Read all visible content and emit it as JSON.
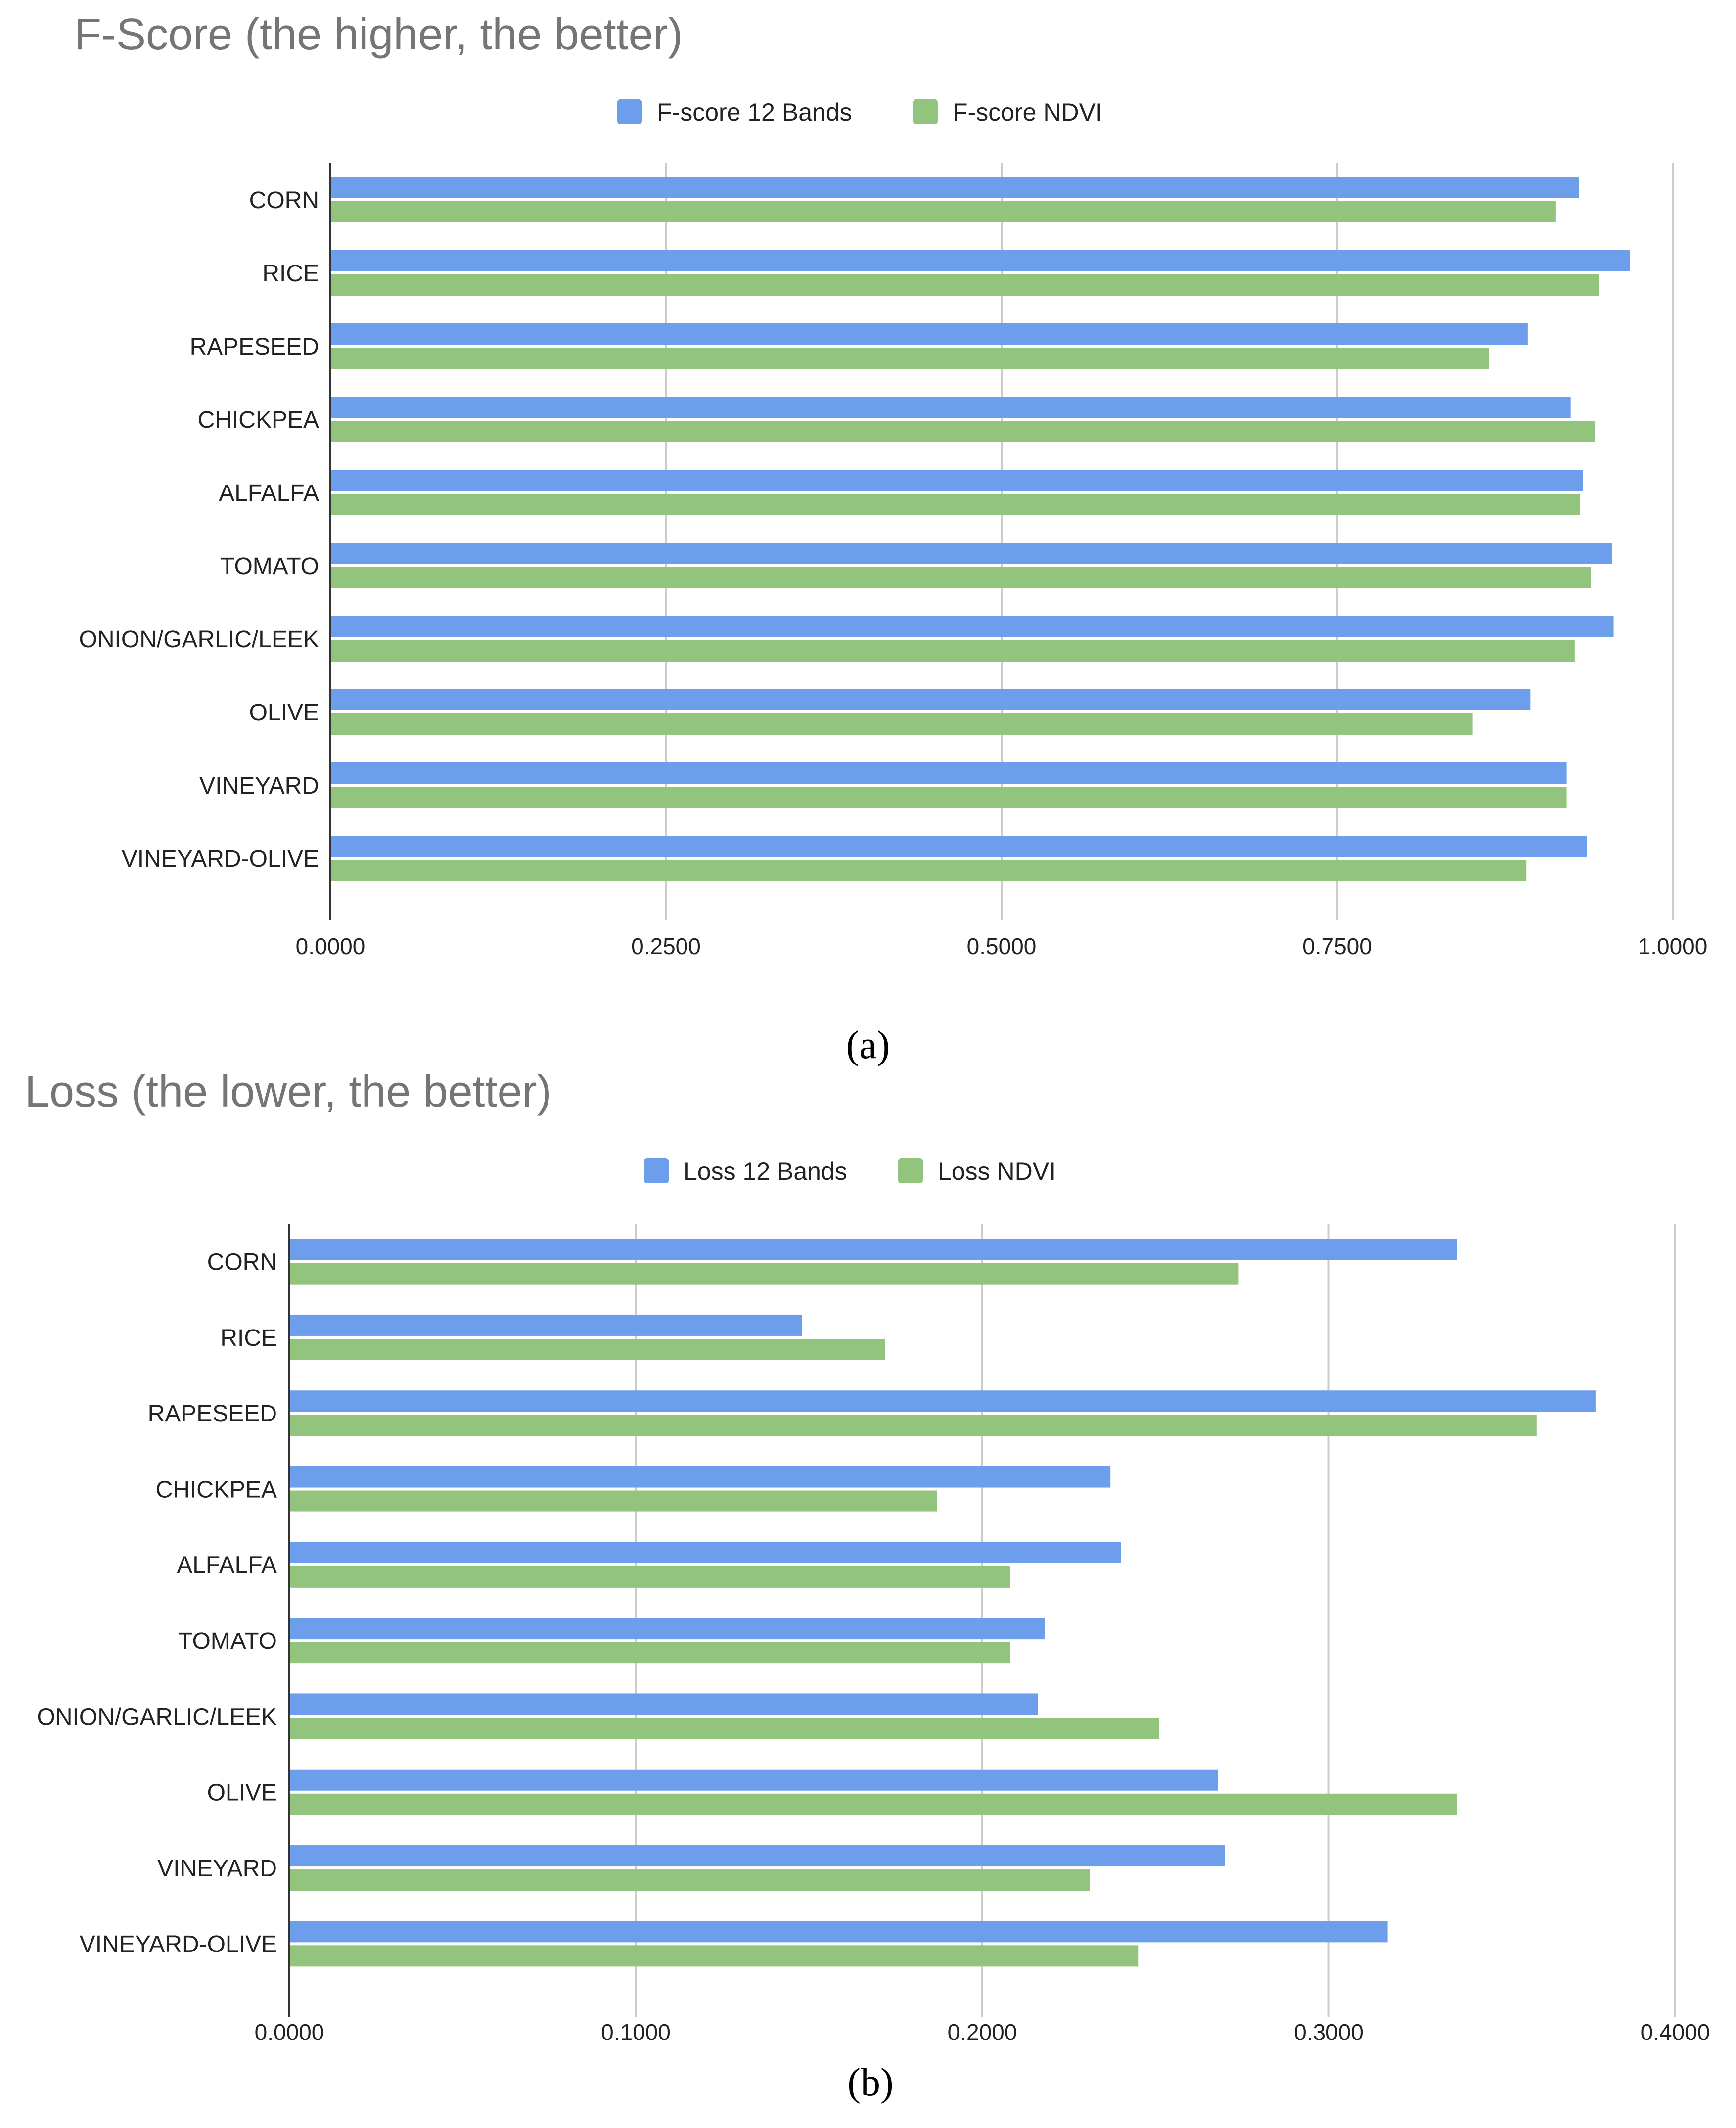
{
  "colors": {
    "series1": "#6d9eeb",
    "series2": "#93c47d"
  },
  "chart_data": [
    {
      "type": "bar",
      "orientation": "horizontal",
      "title": "F-Score (the higher, the better)",
      "panel_label": "(a)",
      "categories": [
        "CORN",
        "RICE",
        "RAPESEED",
        "CHICKPEA",
        "ALFALFA",
        "TOMATO",
        "ONION/GARLIC/LEEK",
        "OLIVE",
        "VINEYARD",
        "VINEYARD-OLIVE"
      ],
      "series": [
        {
          "name": "F-score 12 Bands",
          "values": [
            0.93,
            0.968,
            0.892,
            0.924,
            0.933,
            0.955,
            0.956,
            0.894,
            0.921,
            0.936
          ]
        },
        {
          "name": "F-score NDVI",
          "values": [
            0.913,
            0.945,
            0.863,
            0.942,
            0.931,
            0.939,
            0.927,
            0.851,
            0.921,
            0.891
          ]
        }
      ],
      "xlim": [
        0,
        1
      ],
      "ticks": [
        "0.0000",
        "0.2500",
        "0.5000",
        "0.7500",
        "1.0000"
      ],
      "grid": true,
      "legend_position": "top-center"
    },
    {
      "type": "bar",
      "orientation": "horizontal",
      "title": "Loss (the lower, the better)",
      "panel_label": "(b)",
      "categories": [
        "CORN",
        "RICE",
        "RAPESEED",
        "CHICKPEA",
        "ALFALFA",
        "TOMATO",
        "ONION/GARLIC/LEEK",
        "OLIVE",
        "VINEYARD",
        "VINEYARD-OLIVE"
      ],
      "series": [
        {
          "name": "Loss 12 Bands",
          "values": [
            0.337,
            0.148,
            0.377,
            0.237,
            0.24,
            0.218,
            0.216,
            0.268,
            0.27,
            0.317
          ]
        },
        {
          "name": "Loss NDVI",
          "values": [
            0.274,
            0.172,
            0.36,
            0.187,
            0.208,
            0.208,
            0.251,
            0.337,
            0.231,
            0.245
          ]
        }
      ],
      "xlim": [
        0,
        0.4
      ],
      "ticks": [
        "0.0000",
        "0.1000",
        "0.2000",
        "0.3000",
        "0.4000"
      ],
      "grid": true,
      "legend_position": "top-center"
    }
  ]
}
